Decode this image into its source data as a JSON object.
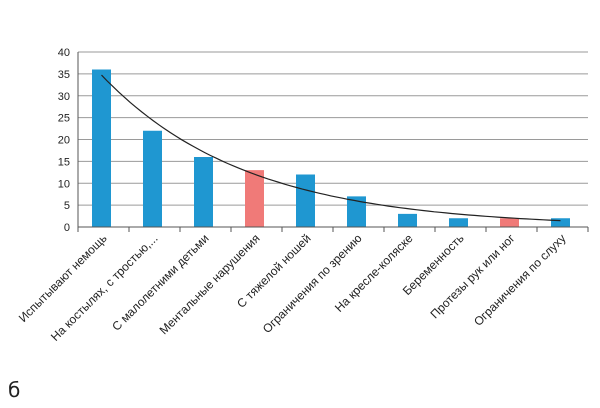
{
  "panel_label": "б",
  "chart_data": {
    "type": "bar",
    "categories": [
      "Испытывают немощь",
      "На костылях, с тростью,...",
      "С малолетними детьми",
      "Ментальные нарушения",
      "С тяжелой ношей",
      "Ограничения по зрению",
      "На кресле-коляске",
      "Беременность",
      "Протезы рук или ног",
      "Ограничения по слуху"
    ],
    "values": [
      36,
      22,
      16,
      13,
      12,
      7,
      3,
      2,
      2,
      2
    ],
    "bar_colors": [
      "#1f97d1",
      "#1f97d1",
      "#1f97d1",
      "#f07a78",
      "#1f97d1",
      "#1f97d1",
      "#1f97d1",
      "#1f97d1",
      "#f07a78",
      "#1f97d1"
    ],
    "trendline": {
      "type": "exponential",
      "color": "#222222"
    },
    "ylim": [
      0,
      40
    ],
    "yticks": [
      0,
      5,
      10,
      15,
      20,
      25,
      30,
      35,
      40
    ],
    "grid": true,
    "legend": "none"
  }
}
